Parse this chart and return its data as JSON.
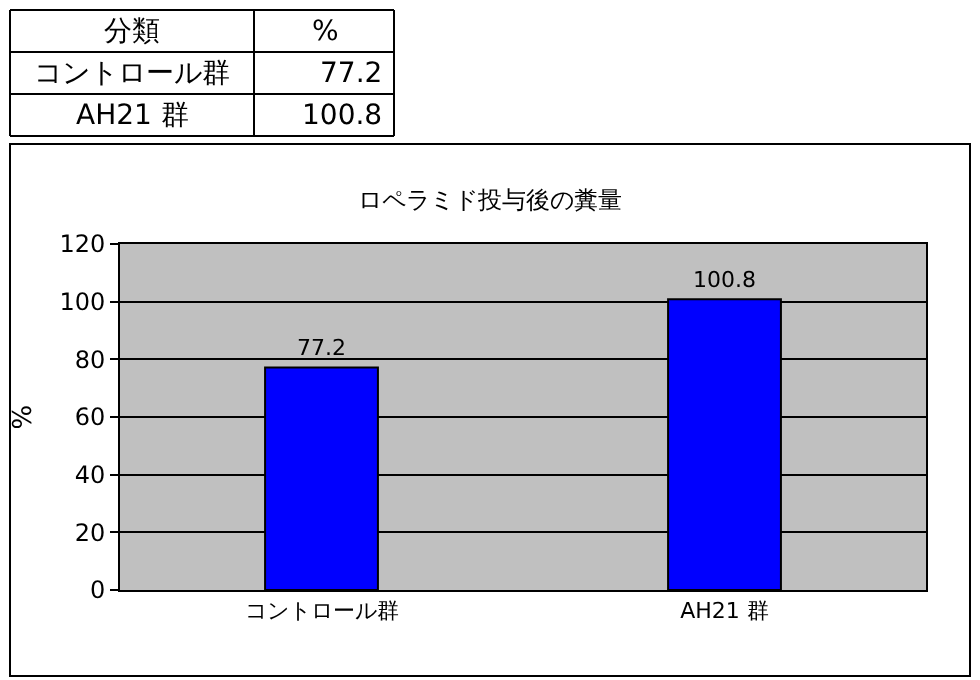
{
  "chart_data": {
    "type": "bar",
    "title": "ロペラミド投与後の糞量",
    "ylabel": "%",
    "categories": [
      "コントロール群",
      "AH21 群"
    ],
    "values": [
      77.2,
      100.8
    ],
    "color": "#0000ff",
    "ylim": [
      0,
      120
    ],
    "yticks": [
      0,
      20,
      40,
      60,
      80,
      100,
      120
    ],
    "value_labels": [
      "77.2",
      "100.8"
    ],
    "grid": "y",
    "legend": false,
    "annotations": [
      "分類",
      "%"
    ]
  }
}
